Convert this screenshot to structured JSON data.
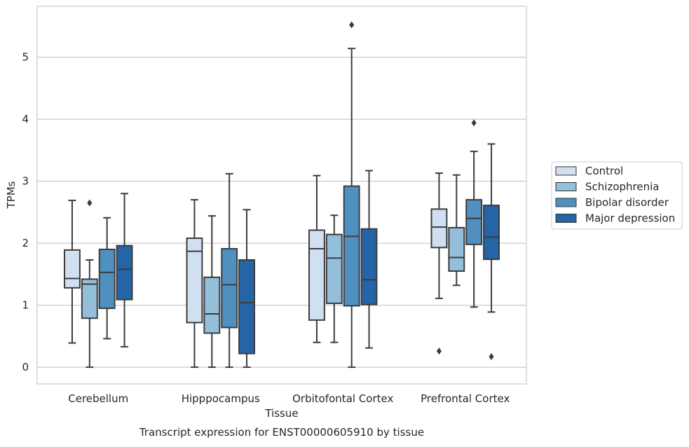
{
  "chart_data": {
    "type": "boxplot",
    "title": "",
    "caption": "Transcript expression for ENST00000605910 by tissue",
    "xlabel": "Tissue",
    "ylabel": "TPMs",
    "ylim": [
      -0.27,
      5.82
    ],
    "yticks": [
      0,
      1,
      2,
      3,
      4,
      5
    ],
    "grid": "horizontal",
    "legend_position": "right",
    "categories": [
      "Cerebellum",
      "Hipppocampus",
      "Orbitofontal Cortex",
      "Prefrontal Cortex"
    ],
    "series": [
      {
        "name": "Control",
        "color": "#d1e0f0",
        "boxes": [
          {
            "whislo": 0.39,
            "q1": 1.28,
            "med": 1.43,
            "q3": 1.89,
            "whishi": 2.69,
            "fliers": []
          },
          {
            "whislo": 0.0,
            "q1": 0.72,
            "med": 1.87,
            "q3": 2.08,
            "whishi": 2.7,
            "fliers": []
          },
          {
            "whislo": 0.4,
            "q1": 0.76,
            "med": 1.91,
            "q3": 2.21,
            "whishi": 3.09,
            "fliers": []
          },
          {
            "whislo": 1.11,
            "q1": 1.93,
            "med": 2.26,
            "q3": 2.55,
            "whishi": 3.13,
            "fliers": [
              0.26
            ]
          }
        ]
      },
      {
        "name": "Schizophrenia",
        "color": "#94bfdb",
        "boxes": [
          {
            "whislo": 0.0,
            "q1": 0.79,
            "med": 1.34,
            "q3": 1.42,
            "whishi": 1.73,
            "fliers": [
              2.65
            ]
          },
          {
            "whislo": 0.0,
            "q1": 0.55,
            "med": 0.86,
            "q3": 1.45,
            "whishi": 2.44,
            "fliers": []
          },
          {
            "whislo": 0.4,
            "q1": 1.03,
            "med": 1.76,
            "q3": 2.14,
            "whishi": 2.45,
            "fliers": []
          },
          {
            "whislo": 1.32,
            "q1": 1.55,
            "med": 1.77,
            "q3": 2.25,
            "whishi": 3.1,
            "fliers": []
          }
        ]
      },
      {
        "name": "Bipolar disorder",
        "color": "#4f90c1",
        "boxes": [
          {
            "whislo": 0.46,
            "q1": 0.95,
            "med": 1.53,
            "q3": 1.9,
            "whishi": 2.41,
            "fliers": []
          },
          {
            "whislo": 0.0,
            "q1": 0.64,
            "med": 1.33,
            "q3": 1.91,
            "whishi": 3.12,
            "fliers": []
          },
          {
            "whislo": 0.0,
            "q1": 0.99,
            "med": 2.11,
            "q3": 2.92,
            "whishi": 5.14,
            "fliers": [
              5.52
            ]
          },
          {
            "whislo": 0.97,
            "q1": 1.98,
            "med": 2.4,
            "q3": 2.7,
            "whishi": 3.48,
            "fliers": [
              3.94
            ]
          }
        ]
      },
      {
        "name": "Major depression",
        "color": "#2564a6",
        "boxes": [
          {
            "whislo": 0.33,
            "q1": 1.09,
            "med": 1.58,
            "q3": 1.96,
            "whishi": 2.8,
            "fliers": []
          },
          {
            "whislo": 0.0,
            "q1": 0.22,
            "med": 1.04,
            "q3": 1.73,
            "whishi": 2.54,
            "fliers": []
          },
          {
            "whislo": 0.31,
            "q1": 1.01,
            "med": 1.41,
            "q3": 2.23,
            "whishi": 3.17,
            "fliers": []
          },
          {
            "whislo": 0.89,
            "q1": 1.74,
            "med": 2.1,
            "q3": 2.61,
            "whishi": 3.6,
            "fliers": [
              0.17
            ]
          }
        ]
      }
    ]
  }
}
